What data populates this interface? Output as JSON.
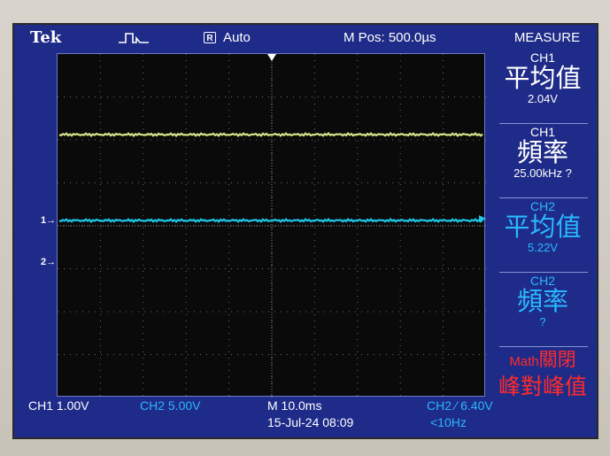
{
  "header": {
    "brand": "Tek",
    "trigger_icon": "pulse-icon",
    "acq_icon_letter": "R",
    "mode": "Auto",
    "m_pos": "M Pos: 500.0µs",
    "measure_title": "MEASURE"
  },
  "markers": {
    "ch1": "1→",
    "ch2": "2→"
  },
  "measurements": [
    {
      "channel": "CH1",
      "type": "平均值",
      "value": "2.04V",
      "color": "#ffffff"
    },
    {
      "channel": "CH1",
      "type": "頻率",
      "value": "25.00kHz ?",
      "color": "#ffffff"
    },
    {
      "channel": "CH2",
      "type": "平均值",
      "value": "5.22V",
      "color": "#29b8ff"
    },
    {
      "channel": "CH2",
      "type": "頻率",
      "value": "?",
      "color": "#29b8ff"
    }
  ],
  "math": {
    "label": "Math",
    "state": "關閉",
    "item": "峰對峰值"
  },
  "footer": {
    "ch1_scale": "CH1  1.00V",
    "ch2_scale": "CH2  5.00V",
    "timebase": "M 10.0ms",
    "datetime": "15-Jul-24 08:09",
    "trigger_src": "CH2 ∕  6.40V",
    "trigger_freq": "<10Hz"
  },
  "colors": {
    "ch1_trace": "#d6e48a",
    "ch2_trace": "#1fc7ea",
    "screen_bg": "#1f2b88",
    "graticule_bg": "#0a0a0a",
    "math_text": "#ff2b2b"
  }
}
